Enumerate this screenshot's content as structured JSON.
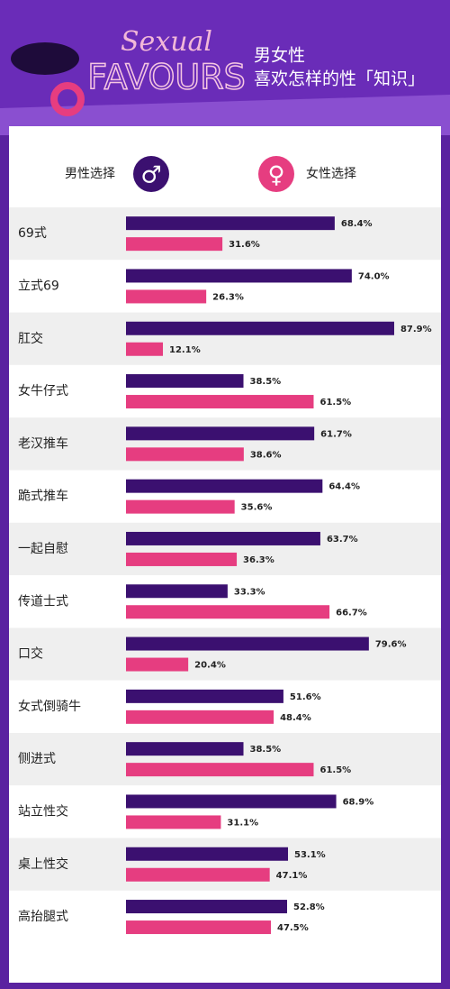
{
  "chart_data": {
    "type": "bar",
    "orientation": "horizontal",
    "title": "Sexual",
    "title_line2": "FAVOURS",
    "subtitle": "男女性",
    "subtitle_line2": "喜欢怎样的性「知识」",
    "categories": [
      "69式",
      "立式69",
      "肛交",
      "女牛仔式",
      "老汉推车",
      "跪式推车",
      "一起自慰",
      "传道士式",
      "口交",
      "女式倒骑牛",
      "侧进式",
      "站立性交",
      "桌上性交",
      "高抬腿式"
    ],
    "series": [
      {
        "name": "男性选择",
        "color": "#3b1070",
        "values": [
          68.4,
          74.0,
          87.9,
          38.5,
          61.7,
          64.4,
          63.7,
          33.3,
          79.6,
          51.6,
          38.5,
          68.9,
          53.1,
          52.8
        ],
        "value_labels": [
          "68.4%",
          "74.0%",
          "87.9%",
          "38.5%",
          "61.7%",
          "64.4%",
          "63.7%",
          "33.3%",
          "79.6%",
          "51.6%",
          "38.5%",
          "68.9%",
          "53.1%",
          "52.8%"
        ]
      },
      {
        "name": "女性选择",
        "color": "#e63d80",
        "values": [
          31.6,
          26.3,
          12.1,
          61.5,
          38.6,
          35.6,
          36.3,
          66.7,
          20.4,
          48.4,
          61.5,
          31.1,
          47.1,
          47.5
        ],
        "value_labels": [
          "31.6%",
          "26.3%",
          "12.1%",
          "61.5%",
          "38.6%",
          "35.6%",
          "36.3%",
          "66.7%",
          "20.4%",
          "48.4%",
          "61.5%",
          "31.1%",
          "47.1%",
          "47.5%"
        ]
      }
    ],
    "xlim": [
      0,
      100
    ]
  }
}
